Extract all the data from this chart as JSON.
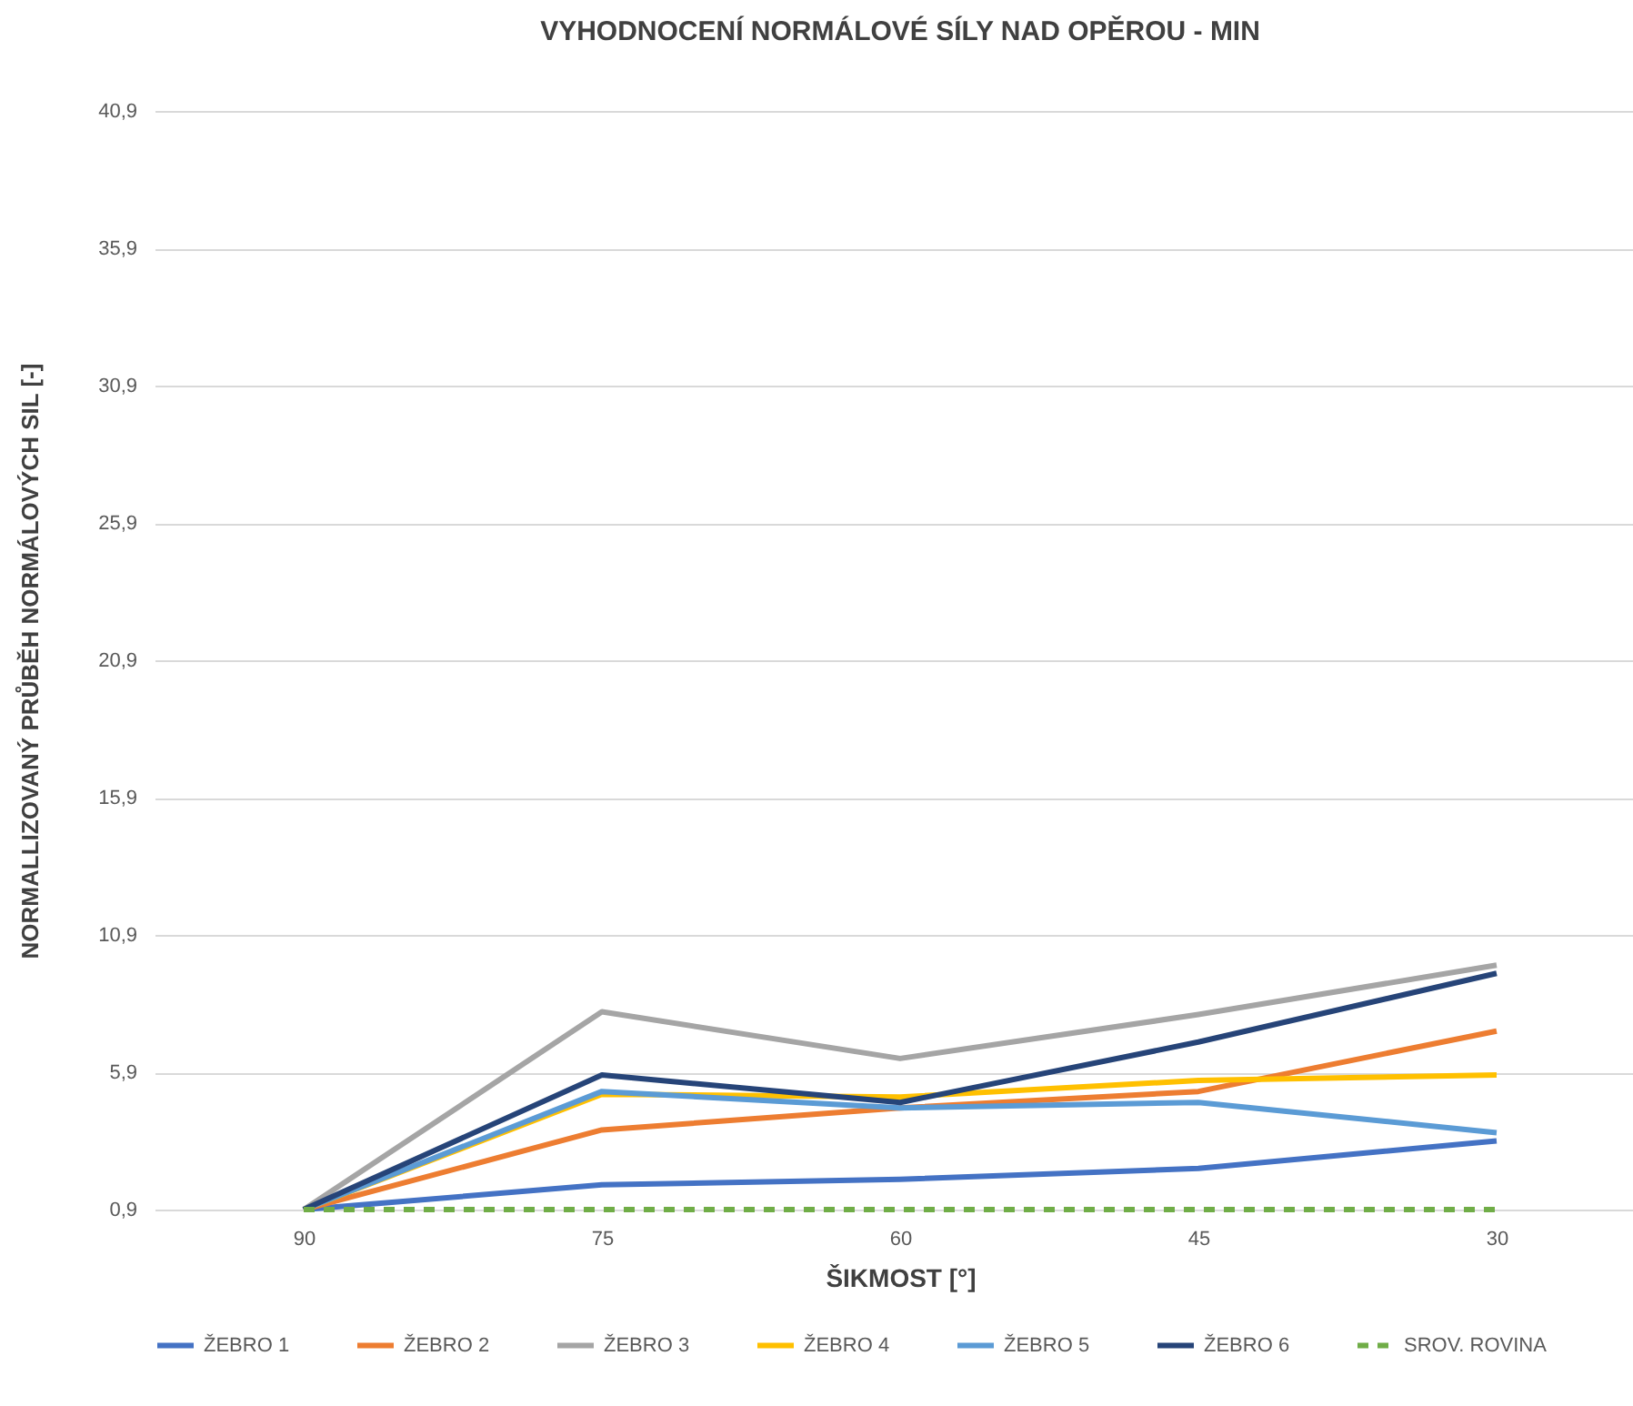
{
  "chart_data": {
    "type": "line",
    "title": "VYHODNOCENÍ NORMÁLOVÉ SÍLY NAD OPĚROU - MIN",
    "xlabel": "ŠIKMOST [°]",
    "ylabel": "NORMALLIZOVANÝ PRŮBĚH NORMÁLOVÝCH SIL [-]",
    "categories": [
      "90",
      "75",
      "60",
      "45",
      "30"
    ],
    "series": [
      {
        "name": "ŽEBRO 1",
        "color": "#4472c4",
        "values": [
          0.9,
          1.8,
          2.0,
          2.4,
          3.4
        ]
      },
      {
        "name": "ŽEBRO 2",
        "color": "#ed7d31",
        "values": [
          0.9,
          3.8,
          4.6,
          5.2,
          7.4
        ]
      },
      {
        "name": "ŽEBRO 3",
        "color": "#a5a5a5",
        "values": [
          0.9,
          8.1,
          6.4,
          8.0,
          9.8
        ]
      },
      {
        "name": "ŽEBRO 4",
        "color": "#ffc000",
        "values": [
          0.9,
          5.1,
          5.0,
          5.6,
          5.8
        ]
      },
      {
        "name": "ŽEBRO 5",
        "color": "#5b9bd5",
        "values": [
          0.9,
          5.2,
          4.6,
          4.8,
          3.7
        ]
      },
      {
        "name": "ŽEBRO 6",
        "color": "#264478",
        "values": [
          0.9,
          5.8,
          4.8,
          7.0,
          9.5
        ]
      },
      {
        "name": "SROV. ROVINA",
        "color": "#70ad47",
        "line_style": "dashed",
        "values": [
          0.9,
          0.9,
          0.9,
          0.9,
          0.9
        ]
      }
    ],
    "ylim": [
      0.9,
      40.9
    ],
    "yticks": [
      {
        "value": 0.9,
        "label": "0,9"
      },
      {
        "value": 5.9,
        "label": "5,9"
      },
      {
        "value": 10.9,
        "label": "10,9"
      },
      {
        "value": 15.9,
        "label": "15,9"
      },
      {
        "value": 20.9,
        "label": "20,9"
      },
      {
        "value": 25.9,
        "label": "25,9"
      },
      {
        "value": 30.9,
        "label": "30,9"
      },
      {
        "value": 35.9,
        "label": "35,9"
      },
      {
        "value": 40.9,
        "label": "40,9"
      }
    ],
    "grid": "y",
    "legend": "bottom"
  }
}
